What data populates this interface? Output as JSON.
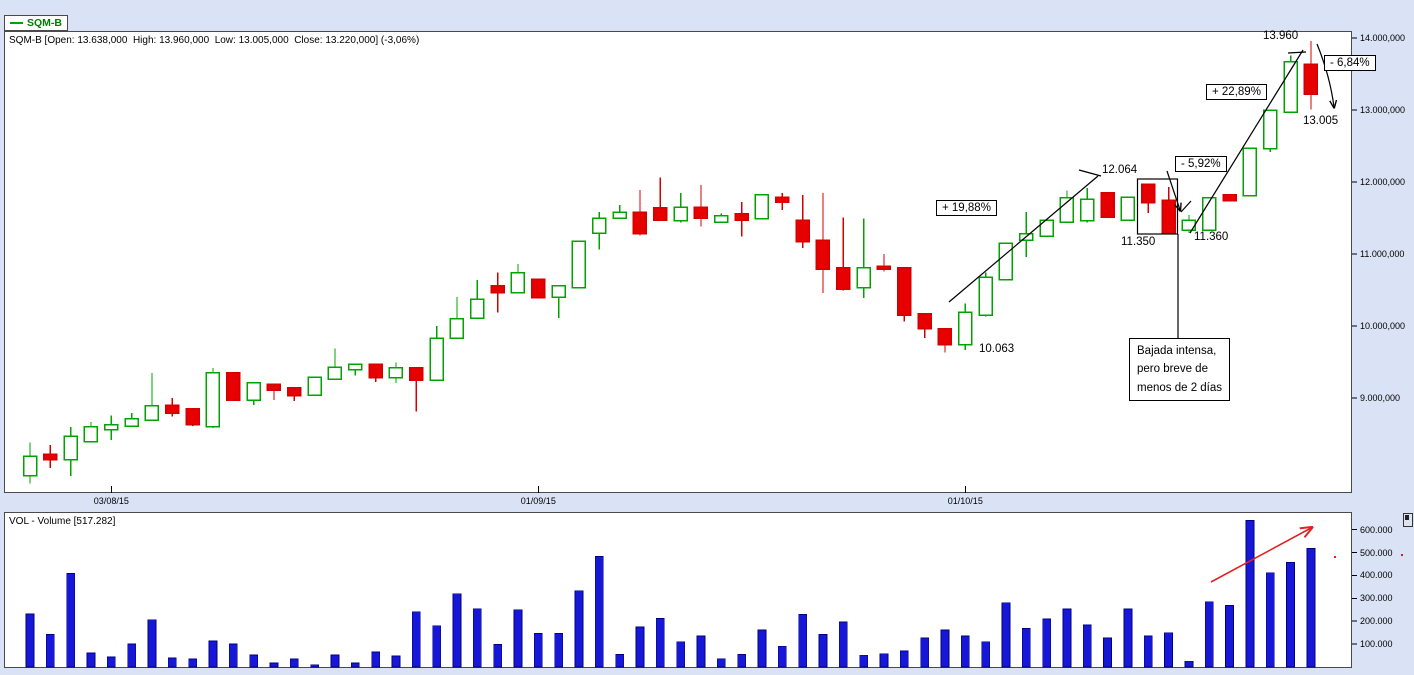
{
  "legend": {
    "series_label": "SQM-B"
  },
  "header": {
    "info_line": "SQM-B [Open: 13.638,000  High: 13.960,000  Low: 13.005,000  Close: 13.220,000] (-3,06%)"
  },
  "volume_header": {
    "info_line": "VOL - Volume [517.282]"
  },
  "colors": {
    "background": "#d9e3f5",
    "panel_bg": "#ffffff",
    "panel_border": "#4a4a4a",
    "up_candle": "#00a300",
    "down_candle": "#e60000",
    "volume_bar": "#1717d8",
    "volume_bar_border": "#000080",
    "annotation_line": "#000000",
    "red_arrow": "#e22222",
    "legend_text": "#007a00"
  },
  "annotations": {
    "pct_up_1": {
      "text": "+ 19,88%"
    },
    "pct_down_1": {
      "text": "- 5,92%"
    },
    "pct_up_2": {
      "text": "+ 22,89%"
    },
    "pct_down_2": {
      "text": "- 6,84%"
    },
    "value_12064": {
      "text": "12.064"
    },
    "value_11350": {
      "text": "11.350"
    },
    "value_11360": {
      "text": "11.360"
    },
    "value_10063": {
      "text": "10.063"
    },
    "value_13960": {
      "text": "13.960"
    },
    "value_13005": {
      "text": "13.005"
    },
    "note_box": {
      "text": "Bajada intensa,\npero breve de\nmenos de 2 días"
    }
  },
  "chart_data": [
    {
      "type": "candlestick",
      "title": "SQM-B",
      "ohlc_info": {
        "open": "13.638,000",
        "high": "13.960,000",
        "low": "13.005,000",
        "close": "13.220,000",
        "change_pct": "-3,06%"
      },
      "x_axis": {
        "ticks": [
          {
            "label": "03/08/15",
            "index": 4
          },
          {
            "label": "01/09/15",
            "index": 25
          },
          {
            "label": "01/10/15",
            "index": 46
          }
        ]
      },
      "y_axis": {
        "ticks": [
          {
            "label": "14.000,000",
            "value": 14000
          },
          {
            "label": "13.000,000",
            "value": 13000
          },
          {
            "label": "12.000,000",
            "value": 12000
          },
          {
            "label": "11.000,000",
            "value": 11000
          },
          {
            "label": "10.000,000",
            "value": 10000
          },
          {
            "label": "9.000,000",
            "value": 9000
          }
        ],
        "range": [
          7650,
          14100
        ],
        "grid": false,
        "axis_side": "right"
      },
      "candles_columns": [
        "open",
        "high",
        "low",
        "close"
      ],
      "candles": [
        [
          7920,
          8380,
          7810,
          8190
        ],
        [
          8220,
          8350,
          8030,
          8140
        ],
        [
          8140,
          8600,
          7920,
          8470
        ],
        [
          8390,
          8670,
          8390,
          8600
        ],
        [
          8560,
          8760,
          8420,
          8630
        ],
        [
          8610,
          8790,
          8600,
          8710
        ],
        [
          8690,
          9350,
          8690,
          8890
        ],
        [
          8900,
          9000,
          8740,
          8790
        ],
        [
          8850,
          8850,
          8610,
          8630
        ],
        [
          8600,
          9420,
          8580,
          9350
        ],
        [
          9350,
          9350,
          8970,
          8970
        ],
        [
          8970,
          9220,
          8900,
          9210
        ],
        [
          9190,
          9190,
          8970,
          9110
        ],
        [
          9140,
          9140,
          8960,
          9030
        ],
        [
          9040,
          9290,
          9040,
          9290
        ],
        [
          9260,
          9690,
          9260,
          9430
        ],
        [
          9390,
          9470,
          9310,
          9470
        ],
        [
          9470,
          9470,
          9220,
          9280
        ],
        [
          9280,
          9490,
          9210,
          9420
        ],
        [
          9420,
          9420,
          8810,
          9250
        ],
        [
          9250,
          10000,
          9250,
          9830
        ],
        [
          9830,
          10400,
          9820,
          10100
        ],
        [
          10110,
          10640,
          10110,
          10370
        ],
        [
          10560,
          10740,
          10190,
          10460
        ],
        [
          10460,
          10860,
          10460,
          10740
        ],
        [
          10650,
          10650,
          10390,
          10390
        ],
        [
          10400,
          10560,
          10110,
          10560
        ],
        [
          10530,
          11180,
          10530,
          11180
        ],
        [
          11290,
          11580,
          11060,
          11500
        ],
        [
          11500,
          11680,
          11490,
          11580
        ],
        [
          11580,
          11890,
          11260,
          11280
        ],
        [
          11640,
          12060,
          11460,
          11470
        ],
        [
          11460,
          11850,
          11440,
          11650
        ],
        [
          11650,
          11960,
          11380,
          11500
        ],
        [
          11440,
          11560,
          11430,
          11530
        ],
        [
          11560,
          11720,
          11240,
          11470
        ],
        [
          11490,
          11820,
          11490,
          11820
        ],
        [
          11790,
          11850,
          11610,
          11720
        ],
        [
          11470,
          11820,
          11080,
          11170
        ],
        [
          11190,
          11850,
          10460,
          10790
        ],
        [
          10810,
          11510,
          10490,
          10510
        ],
        [
          10530,
          11490,
          10390,
          10810
        ],
        [
          10830,
          11000,
          10760,
          10790
        ],
        [
          10810,
          10810,
          10060,
          10150
        ],
        [
          10170,
          10170,
          9830,
          9960
        ],
        [
          9960,
          9960,
          9630,
          9740
        ],
        [
          9740,
          10310,
          9670,
          10190
        ],
        [
          10150,
          10740,
          10130,
          10680
        ],
        [
          10640,
          11150,
          10640,
          11150
        ],
        [
          11190,
          11580,
          10960,
          11280
        ],
        [
          11250,
          11470,
          11250,
          11470
        ],
        [
          11440,
          11880,
          11430,
          11780
        ],
        [
          11460,
          11920,
          11440,
          11760
        ],
        [
          11850,
          11850,
          11510,
          11510
        ],
        [
          11470,
          11790,
          11470,
          11790
        ],
        [
          11970,
          11970,
          11570,
          11710
        ],
        [
          11750,
          11930,
          11290,
          11290
        ],
        [
          11330,
          11540,
          11290,
          11470
        ],
        [
          11330,
          11780,
          11330,
          11780
        ],
        [
          11820,
          11820,
          11740,
          11740
        ],
        [
          11810,
          12470,
          11810,
          12470
        ],
        [
          12460,
          13000,
          12420,
          13000
        ],
        [
          12970,
          13760,
          12970,
          13670
        ],
        [
          13638,
          13960,
          13005,
          13220
        ]
      ]
    },
    {
      "type": "bar",
      "title": "VOL - Volume",
      "last_value_label": "517.282",
      "y_axis": {
        "ticks": [
          {
            "label": "600.000",
            "value": 600000
          },
          {
            "label": "500.000",
            "value": 500000
          },
          {
            "label": "400.000",
            "value": 400000
          },
          {
            "label": "300.000",
            "value": 300000
          },
          {
            "label": "200.000",
            "value": 200000
          },
          {
            "label": "100.000",
            "value": 100000
          }
        ],
        "range": [
          0,
          655000
        ],
        "grid": false,
        "axis_side": "right"
      },
      "values": [
        232000,
        142000,
        408000,
        61000,
        44000,
        101000,
        206000,
        39000,
        35000,
        114000,
        101000,
        53000,
        18000,
        35000,
        10000,
        53000,
        18000,
        66000,
        48000,
        241000,
        180000,
        320000,
        254000,
        98000,
        250000,
        146000,
        146000,
        333000,
        482000,
        54000,
        175000,
        212000,
        110000,
        136000,
        36000,
        54000,
        161000,
        91000,
        229000,
        142000,
        197000,
        51000,
        58000,
        70000,
        127000,
        161000,
        135000,
        110000,
        281000,
        168000,
        209000,
        253000,
        183000,
        127000,
        253000,
        135000,
        150000,
        25000,
        285000,
        268000,
        640000,
        412000,
        456000,
        517282
      ]
    }
  ]
}
